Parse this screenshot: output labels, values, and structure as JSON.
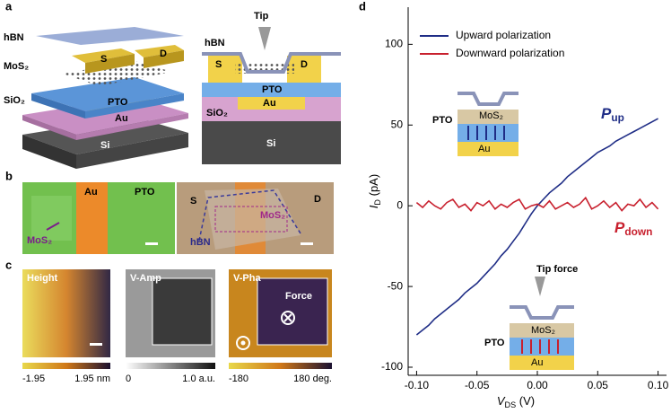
{
  "panels": {
    "a": {
      "label": "a",
      "left": {
        "hbn": "hBN",
        "mos2": "MoS₂",
        "sio2": "SiO₂",
        "s": "S",
        "d": "D",
        "pto": "PTO",
        "au": "Au",
        "si": "Si"
      },
      "right": {
        "tip": "Tip",
        "hbn": "hBN",
        "s": "S",
        "d": "D",
        "pto": "PTO",
        "au": "Au",
        "sio2": "SiO₂",
        "si": "Si"
      }
    },
    "b": {
      "label": "b",
      "left": {
        "au": "Au",
        "pto": "PTO",
        "mos2": "MoS₂"
      },
      "right": {
        "s": "S",
        "d": "D",
        "mos2": "MoS₂",
        "hbn": "hBN"
      }
    },
    "c": {
      "label": "c",
      "height": {
        "title": "Height",
        "min": "-1.95",
        "max": "1.95 nm"
      },
      "amp": {
        "title": "V-Amp",
        "min": "0",
        "max": "1.0 a.u."
      },
      "pha": {
        "title": "V-Pha",
        "force": "Force",
        "min": "-180",
        "max": "180 deg."
      }
    }
  },
  "chart_data": {
    "type": "line",
    "panel_label": "d",
    "x_label": {
      "symbol": "V",
      "subscript": "DS",
      "unit": " (V)"
    },
    "y_label": {
      "symbol": "I",
      "subscript": "D",
      "unit": " (pA)"
    },
    "xlim": [
      -0.107,
      0.107
    ],
    "ylim": [
      -105,
      123
    ],
    "xticks": [
      {
        "value": -0.1,
        "label": "-0.10"
      },
      {
        "value": -0.05,
        "label": "-0.05"
      },
      {
        "value": 0,
        "label": "0.00"
      },
      {
        "value": 0.05,
        "label": "0.05"
      },
      {
        "value": 0.1,
        "label": "0.10"
      }
    ],
    "yticks": [
      -100,
      -50,
      0,
      50,
      100
    ],
    "legend": "upper left",
    "x": [
      -0.1,
      -0.095,
      -0.09,
      -0.085,
      -0.08,
      -0.075,
      -0.07,
      -0.065,
      -0.06,
      -0.055,
      -0.05,
      -0.045,
      -0.04,
      -0.035,
      -0.03,
      -0.025,
      -0.02,
      -0.015,
      -0.01,
      -0.005,
      0,
      0.005,
      0.01,
      0.015,
      0.02,
      0.025,
      0.03,
      0.035,
      0.04,
      0.045,
      0.05,
      0.055,
      0.06,
      0.065,
      0.07,
      0.075,
      0.08,
      0.085,
      0.09,
      0.095,
      0.1
    ],
    "series": [
      {
        "name": "Upward polarization",
        "color": "#1f2d86",
        "values": [
          -80,
          -77,
          -74,
          -70,
          -67,
          -64,
          -61,
          -58,
          -54,
          -51,
          -48,
          -44,
          -40,
          -36,
          -31,
          -27,
          -22,
          -17,
          -11,
          -5,
          0,
          4,
          8,
          11,
          14,
          18,
          21,
          24,
          27,
          30,
          33,
          35,
          37,
          40,
          42,
          44,
          46,
          48,
          50,
          52,
          54
        ]
      },
      {
        "name": "Downward polarization",
        "color": "#c8202e",
        "values": [
          2,
          -1,
          3,
          0,
          -2,
          2,
          4,
          -1,
          1,
          -3,
          2,
          0,
          3,
          -2,
          1,
          -1,
          2,
          4,
          -2,
          0,
          1,
          -1,
          3,
          -2,
          0,
          2,
          -1,
          1,
          5,
          -2,
          0,
          3,
          -1,
          2,
          -3,
          1,
          0,
          4,
          -1,
          2,
          -2
        ]
      }
    ],
    "annotations": [
      {
        "symbol": "P",
        "subscript": "up",
        "color": "#1f2d86"
      },
      {
        "symbol": "P",
        "subscript": "down",
        "color": "#c8202e"
      }
    ],
    "insets": [
      {
        "pto": "PTO",
        "mos2": "MoS₂",
        "au": "Au"
      },
      {
        "tip": "Tip force",
        "pto": "PTO",
        "mos2": "MoS₂",
        "au": "Au"
      }
    ]
  }
}
